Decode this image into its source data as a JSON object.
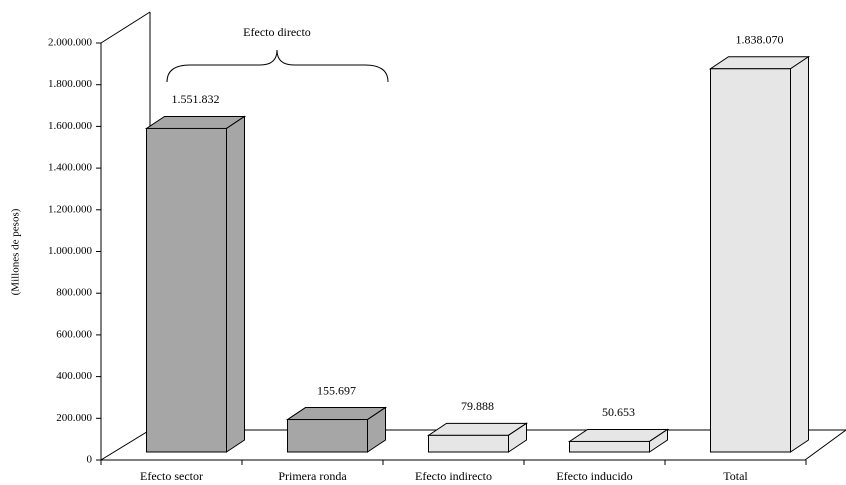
{
  "chart_data": {
    "type": "bar3d",
    "y_label": "(Millones de pesos)",
    "annotation": "Efecto directo",
    "categories": [
      "Efecto sector",
      "Primera ronda",
      "Efecto indirecto",
      "Efecto inducido",
      "Total"
    ],
    "values": [
      1551832,
      155697,
      79888,
      50653,
      1838070
    ],
    "value_labels": [
      "1.551.832",
      "155.697",
      "79.888",
      "50.653",
      "1.838.070"
    ],
    "colors": [
      "#a6a6a6",
      "#a6a6a6",
      "#e6e6e6",
      "#e6e6e6",
      "#e6e6e6"
    ],
    "ylim": [
      0,
      2000000
    ],
    "yticks": [
      0,
      {
        "value": 200000,
        "label": "200.000"
      },
      {
        "value": 400000,
        "label": "400.000"
      },
      {
        "value": 600000,
        "label": "600.000"
      },
      {
        "value": 800000,
        "label": "800.000"
      },
      {
        "value": 1000000,
        "label": "1.000.000"
      },
      {
        "value": 1200000,
        "label": "1.200.000"
      },
      {
        "value": 1400000,
        "label": "1.400.000"
      },
      {
        "value": 1600000,
        "label": "1.600.000"
      },
      {
        "value": 1800000,
        "label": "1.800.000"
      },
      {
        "value": 2000000,
        "label": "2.000.000"
      }
    ]
  }
}
